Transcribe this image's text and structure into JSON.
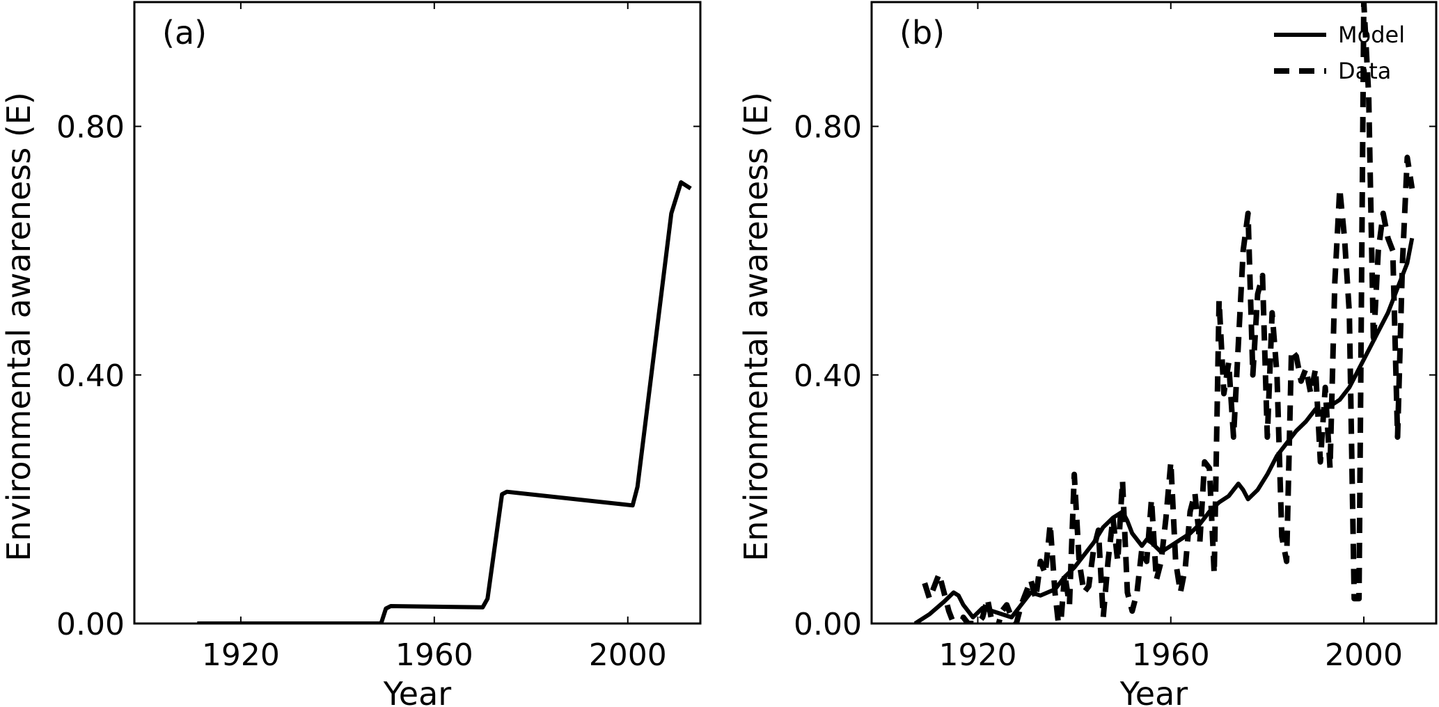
{
  "chart_data": [
    {
      "type": "line",
      "panel_label": "(a)",
      "xlabel": "Year",
      "ylabel": "Environmental awareness (E)",
      "xlim": [
        1898,
        2015
      ],
      "ylim": [
        0,
        1.0
      ],
      "xticks": [
        1920,
        1960,
        2000
      ],
      "xtick_labels": [
        "1920",
        "1960",
        "2000"
      ],
      "yticks": [
        0,
        0.4,
        0.8
      ],
      "ytick_labels": [
        "0.00",
        "0.40",
        "0.80"
      ],
      "grid": false,
      "series": [
        {
          "style": "solid",
          "x": [
            1911,
            1949,
            1950,
            1951,
            1970,
            1971,
            1974,
            1975,
            2001,
            2002,
            2009,
            2011,
            2013
          ],
          "y": [
            0.0,
            0.0,
            0.024,
            0.028,
            0.026,
            0.04,
            0.208,
            0.212,
            0.19,
            0.22,
            0.66,
            0.71,
            0.7
          ]
        }
      ]
    },
    {
      "type": "line",
      "panel_label": "(b)",
      "xlabel": "Year",
      "ylabel": "Environmental awareness (E)",
      "xlim": [
        1898,
        2015
      ],
      "ylim": [
        0,
        1.0
      ],
      "xticks": [
        1920,
        1960,
        2000
      ],
      "xtick_labels": [
        "1920",
        "1960",
        "2000"
      ],
      "yticks": [
        0,
        0.4,
        0.8
      ],
      "ytick_labels": [
        "0.00",
        "0.40",
        "0.80"
      ],
      "grid": false,
      "legend": {
        "position": "top-right",
        "entries": [
          {
            "label": "Model",
            "style": "solid"
          },
          {
            "label": "Data",
            "style": "dashed"
          }
        ]
      },
      "series": [
        {
          "name": "Model",
          "style": "solid",
          "x": [
            1907,
            1910,
            1913,
            1915,
            1916,
            1917,
            1919,
            1921,
            1923,
            1925,
            1927,
            1929,
            1931,
            1933,
            1936,
            1938,
            1940,
            1942,
            1944,
            1946,
            1948,
            1950,
            1951,
            1952,
            1954,
            1955,
            1956,
            1958,
            1960,
            1962,
            1964,
            1966,
            1968,
            1970,
            1972,
            1974,
            1975,
            1976,
            1978,
            1980,
            1982,
            1984,
            1986,
            1988,
            1990,
            1991,
            1993,
            1995,
            1997,
            1999,
            2001,
            2003,
            2005,
            2007,
            2009,
            2010
          ],
          "y": [
            0.0,
            0.015,
            0.035,
            0.05,
            0.045,
            0.03,
            0.01,
            0.025,
            0.02,
            0.015,
            0.01,
            0.03,
            0.05,
            0.045,
            0.055,
            0.075,
            0.09,
            0.11,
            0.13,
            0.155,
            0.17,
            0.18,
            0.165,
            0.145,
            0.125,
            0.135,
            0.13,
            0.115,
            0.125,
            0.135,
            0.145,
            0.16,
            0.18,
            0.195,
            0.205,
            0.225,
            0.215,
            0.2,
            0.215,
            0.24,
            0.27,
            0.29,
            0.31,
            0.325,
            0.345,
            0.34,
            0.35,
            0.36,
            0.38,
            0.41,
            0.44,
            0.47,
            0.5,
            0.54,
            0.58,
            0.62
          ]
        },
        {
          "name": "Data",
          "style": "dashed",
          "x": [
            1909,
            1910,
            1911,
            1912,
            1913,
            1914,
            1915,
            1916,
            1917,
            1918,
            1919,
            1920,
            1921,
            1922,
            1923,
            1924,
            1925,
            1926,
            1927,
            1928,
            1929,
            1930,
            1931,
            1932,
            1933,
            1934,
            1935,
            1936,
            1937,
            1938,
            1939,
            1940,
            1941,
            1942,
            1943,
            1944,
            1945,
            1946,
            1947,
            1948,
            1949,
            1950,
            1951,
            1952,
            1953,
            1954,
            1955,
            1956,
            1957,
            1958,
            1959,
            1960,
            1961,
            1962,
            1963,
            1964,
            1965,
            1966,
            1967,
            1968,
            1969,
            1970,
            1971,
            1972,
            1973,
            1974,
            1975,
            1976,
            1977,
            1978,
            1979,
            1980,
            1981,
            1982,
            1983,
            1984,
            1985,
            1986,
            1987,
            1988,
            1989,
            1990,
            1991,
            1992,
            1993,
            1994,
            1995,
            1996,
            1997,
            1998,
            1999,
            2000,
            2001,
            2002,
            2003,
            2004,
            2005,
            2006,
            2007,
            2008,
            2009,
            2010
          ],
          "y": [
            0.065,
            0.04,
            0.06,
            0.08,
            0.05,
            0.02,
            0.0,
            -0.02,
            0.01,
            0.0,
            0.0,
            0.0,
            0.01,
            0.04,
            0.0,
            -0.01,
            0.02,
            0.03,
            0.01,
            0.0,
            0.03,
            0.05,
            0.07,
            0.04,
            0.1,
            0.08,
            0.16,
            0.05,
            -0.02,
            0.08,
            0.03,
            0.24,
            0.1,
            0.05,
            0.06,
            0.12,
            0.15,
            0.01,
            0.1,
            0.17,
            0.1,
            0.23,
            0.05,
            0.02,
            0.05,
            0.12,
            0.1,
            0.2,
            0.07,
            0.1,
            0.17,
            0.26,
            0.1,
            0.05,
            0.09,
            0.18,
            0.21,
            0.13,
            0.26,
            0.25,
            0.08,
            0.52,
            0.37,
            0.42,
            0.3,
            0.45,
            0.6,
            0.66,
            0.4,
            0.53,
            0.56,
            0.3,
            0.5,
            0.4,
            0.14,
            0.1,
            0.44,
            0.43,
            0.39,
            0.41,
            0.37,
            0.41,
            0.26,
            0.38,
            0.25,
            0.55,
            0.7,
            0.62,
            0.5,
            0.04,
            0.04,
            1.0,
            0.85,
            0.45,
            0.6,
            0.66,
            0.62,
            0.6,
            0.3,
            0.58,
            0.75,
            0.7
          ]
        }
      ]
    }
  ]
}
